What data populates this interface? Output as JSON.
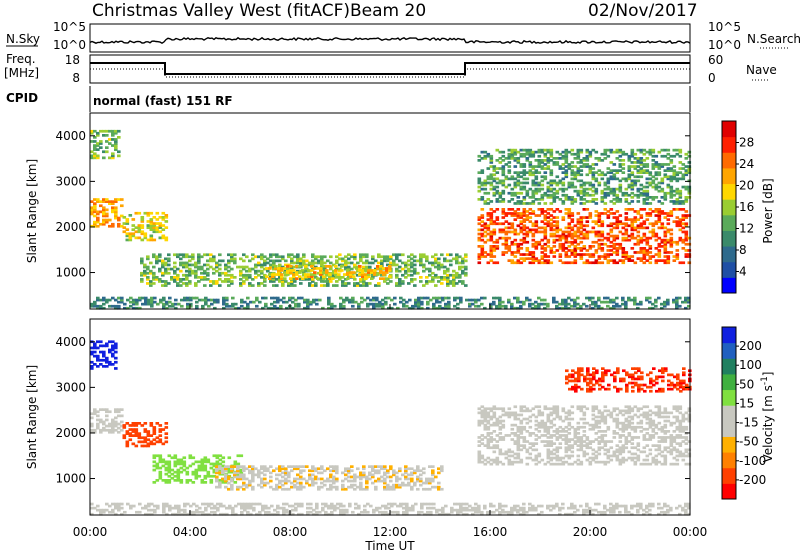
{
  "header": {
    "title": "Christmas Valley West (fitACF)",
    "beam": "Beam 20",
    "date": "02/Nov/2017"
  },
  "top_panels": {
    "nsky_label": "N.Sky",
    "nsearch_label": "N.Search",
    "nsky_ticks": [
      "10^5",
      "10^0"
    ],
    "nsearch_ticks": [
      "10^5",
      "10^0"
    ],
    "freq_label_1": "Freq.",
    "freq_label_2": "[MHz]",
    "freq_ticks": [
      "18",
      "8"
    ],
    "nave_label": "Nave",
    "nave_ticks": [
      "60",
      "0"
    ],
    "cpid_label": "CPID",
    "cpid_text": "normal (fast) 151 RF"
  },
  "chart_data": [
    {
      "type": "heatmap",
      "name": "power",
      "ylabel": "Slant Range [km]",
      "ylim": [
        200,
        4500
      ],
      "yticks": [
        "4000",
        "3000",
        "2000",
        "1000"
      ],
      "xlabel": "Time UT",
      "xlim_hours": [
        0,
        24
      ],
      "xticks": [
        "00:00",
        "04:00",
        "08:00",
        "12:00",
        "16:00",
        "20:00",
        "00:00"
      ],
      "colorbar": {
        "label": "Power [dB]",
        "ticks": [
          "28",
          "24",
          "20",
          "16",
          "12",
          "8",
          "4"
        ],
        "min": 0,
        "max": 32,
        "colors": [
          "#0000ff",
          "#1f4fa5",
          "#2e6a8c",
          "#3a8a6a",
          "#5aaa5a",
          "#9acd32",
          "#ffd700",
          "#ffa500",
          "#ff6a00",
          "#ff2000",
          "#e00000"
        ]
      },
      "regions": [
        {
          "t": [
            0.0,
            1.2
          ],
          "r": [
            3500,
            4100
          ],
          "v": 14
        },
        {
          "t": [
            0.0,
            1.3
          ],
          "r": [
            2000,
            2600
          ],
          "v": 22
        },
        {
          "t": [
            1.3,
            3.0
          ],
          "r": [
            1700,
            2300
          ],
          "v": 18
        },
        {
          "t": [
            2.0,
            15.0
          ],
          "r": [
            700,
            1400
          ],
          "v": 14
        },
        {
          "t": [
            7.0,
            12.0
          ],
          "r": [
            850,
            1150
          ],
          "v": 20
        },
        {
          "t": [
            15.5,
            24.0
          ],
          "r": [
            1200,
            2400
          ],
          "v": 26
        },
        {
          "t": [
            15.5,
            24.0
          ],
          "r": [
            2500,
            3700
          ],
          "v": 12
        },
        {
          "t": [
            0.0,
            24.0
          ],
          "r": [
            200,
            450
          ],
          "v": 10
        }
      ]
    },
    {
      "type": "heatmap",
      "name": "velocity",
      "ylabel": "Slant Range [km]",
      "ylim": [
        200,
        4500
      ],
      "yticks": [
        "4000",
        "3000",
        "2000",
        "1000"
      ],
      "xlabel": "Time UT",
      "xlim_hours": [
        0,
        24
      ],
      "xticks": [
        "00:00",
        "04:00",
        "08:00",
        "12:00",
        "16:00",
        "20:00",
        "00:00"
      ],
      "colorbar": {
        "label": "Velocity [m s^-1]",
        "ticks": [
          "200",
          "100",
          "50",
          "15",
          "-15",
          "-50",
          "-100",
          "-200"
        ],
        "min": -250,
        "max": 250,
        "colors": [
          "#ff0000",
          "#ff4000",
          "#ff8000",
          "#ffb000",
          "#c8c8c0",
          "#c8c8c0",
          "#80e040",
          "#40b040",
          "#208060",
          "#2060c0",
          "#1020e0"
        ]
      },
      "regions": [
        {
          "t": [
            0.0,
            1.0
          ],
          "r": [
            3400,
            4000
          ],
          "v": 220
        },
        {
          "t": [
            0.0,
            1.3
          ],
          "r": [
            2000,
            2500
          ],
          "v": 0
        },
        {
          "t": [
            1.3,
            3.0
          ],
          "r": [
            1700,
            2200
          ],
          "v": -180
        },
        {
          "t": [
            2.5,
            6.0
          ],
          "r": [
            900,
            1500
          ],
          "v": 40
        },
        {
          "t": [
            5.0,
            14.0
          ],
          "r": [
            750,
            1250
          ],
          "v": -60
        },
        {
          "t": [
            15.5,
            24.0
          ],
          "r": [
            1300,
            2600
          ],
          "v": 0
        },
        {
          "t": [
            19.0,
            24.0
          ],
          "r": [
            2900,
            3400
          ],
          "v": -200
        },
        {
          "t": [
            0.0,
            24.0
          ],
          "r": [
            200,
            450
          ],
          "v": -40
        }
      ]
    }
  ]
}
